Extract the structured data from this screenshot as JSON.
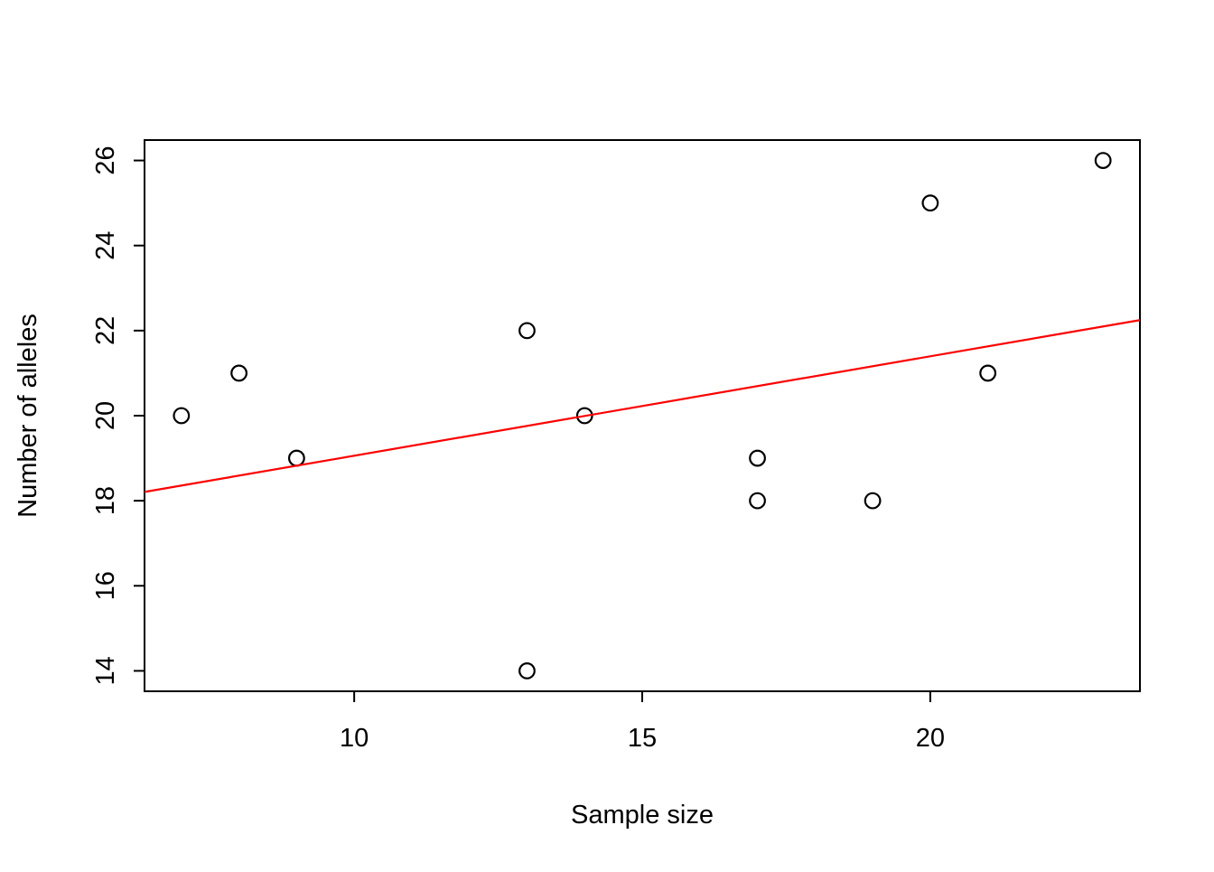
{
  "chart_data": {
    "type": "scatter",
    "title": "",
    "xlabel": "Sample size",
    "ylabel": "Number of alleles",
    "xlim": [
      6.36,
      23.64
    ],
    "ylim": [
      13.52,
      26.48
    ],
    "x_ticks": [
      10,
      15,
      20
    ],
    "y_ticks": [
      14,
      16,
      18,
      20,
      22,
      24,
      26
    ],
    "grid": false,
    "legend": null,
    "points": [
      {
        "x": 7,
        "y": 20
      },
      {
        "x": 8,
        "y": 21
      },
      {
        "x": 9,
        "y": 19
      },
      {
        "x": 13,
        "y": 22
      },
      {
        "x": 13,
        "y": 14
      },
      {
        "x": 14,
        "y": 20
      },
      {
        "x": 17,
        "y": 19
      },
      {
        "x": 17,
        "y": 18
      },
      {
        "x": 19,
        "y": 18
      },
      {
        "x": 20,
        "y": 25
      },
      {
        "x": 21,
        "y": 21
      },
      {
        "x": 23,
        "y": 26
      }
    ],
    "point_style": {
      "shape": "open-circle",
      "color": "#000000"
    },
    "regression_line": {
      "slope": 0.2338,
      "intercept": 16.72,
      "color": "#ff0000"
    }
  },
  "colors": {
    "background": "#ffffff",
    "axis": "#000000",
    "line": "#ff0000"
  }
}
